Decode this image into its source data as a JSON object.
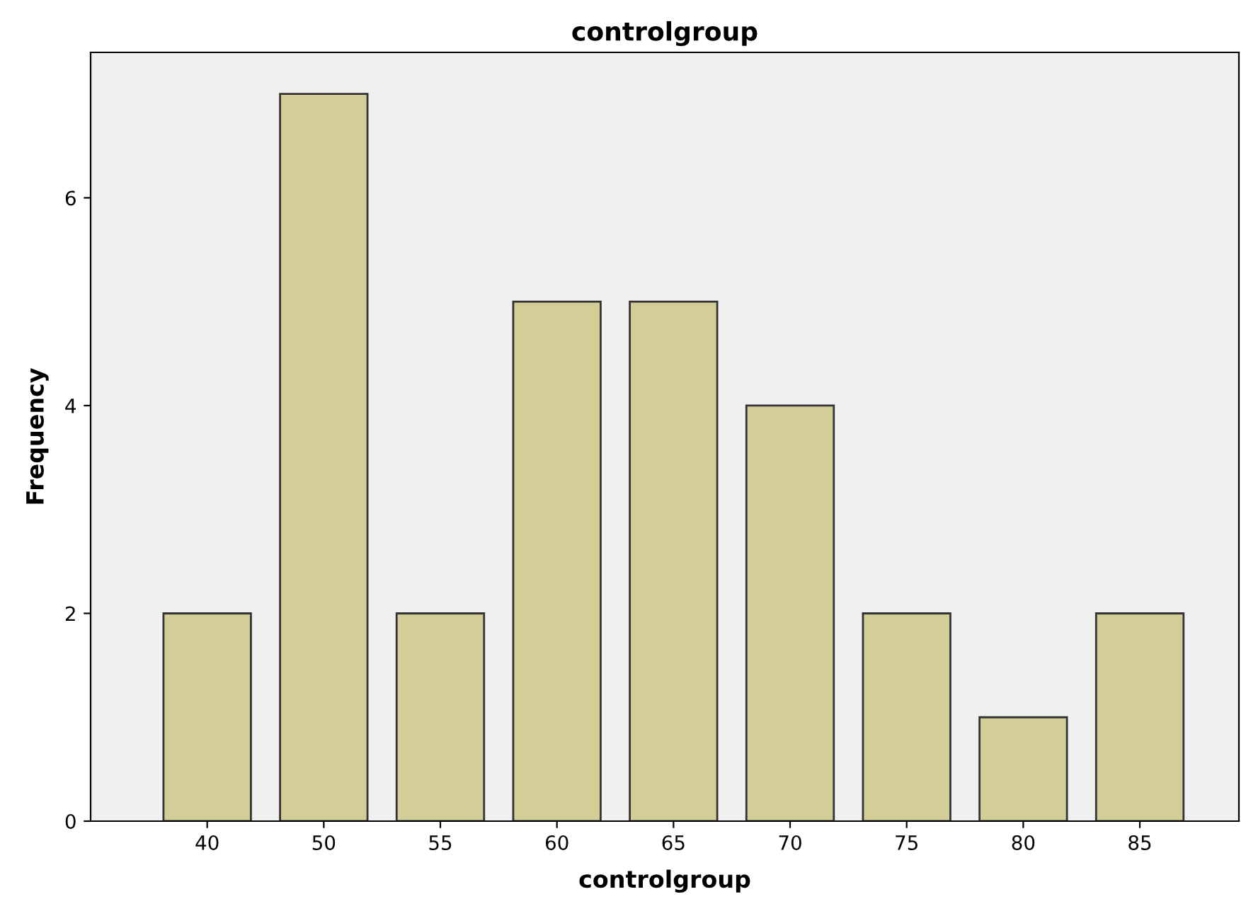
{
  "chart_data": {
    "type": "bar",
    "title": "controlgroup",
    "xlabel": "controlgroup",
    "ylabel": "Frequency",
    "categories": [
      "40",
      "50",
      "55",
      "60",
      "65",
      "70",
      "75",
      "80",
      "85"
    ],
    "values": [
      2,
      7,
      2,
      5,
      5,
      4,
      2,
      1,
      2
    ],
    "color": "#d3ce97",
    "ylim": [
      0,
      7.4
    ],
    "yticks": [
      0,
      2,
      4,
      6
    ],
    "grid": false
  }
}
